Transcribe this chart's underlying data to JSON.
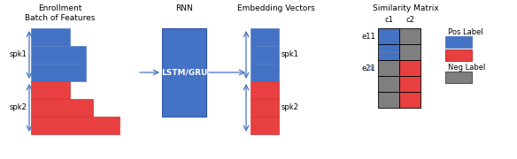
{
  "blue": "#4472C4",
  "red": "#E84040",
  "gray": "#7F7F7F",
  "white": "#FFFFFF",
  "title_fontsize": 6.5,
  "label_fontsize": 6.0,
  "enrollment_title": "Enrollment\nBatch of Features",
  "rnn_title": "RNN",
  "embedding_title": "Embedding Vectors",
  "similarity_title": "Similarity Matrix",
  "spk1_label": "spk1",
  "spk2_label": "spk2",
  "lstm_label": "LSTM/GRU",
  "e11_label": "e11",
  "e21_label": "e21",
  "c1_label": "c1",
  "c2_label": "c2",
  "pos_label": "Pos Label",
  "neg_label": "Neg Label",
  "fig_w": 5.84,
  "fig_h": 1.8,
  "dpi": 100
}
